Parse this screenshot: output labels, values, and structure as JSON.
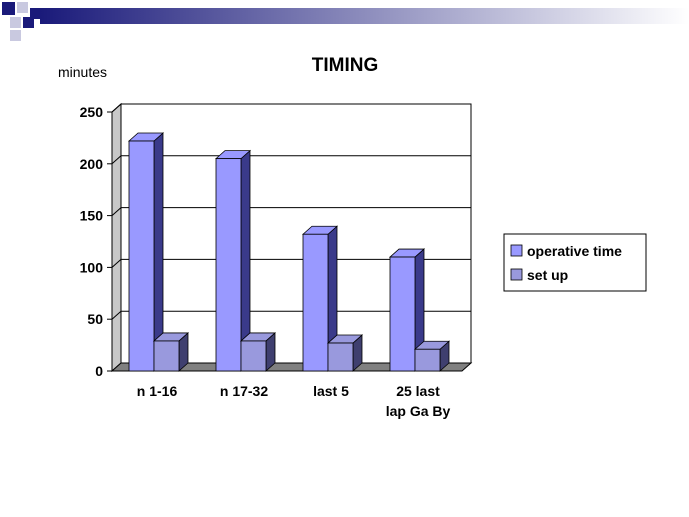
{
  "chart_data": {
    "type": "bar",
    "title": "TIMING",
    "ylabel": "minutes",
    "xlabel": "",
    "categories": [
      [
        "n 1-16"
      ],
      [
        "n 17-32"
      ],
      [
        "last 5"
      ],
      [
        "25 last",
        "lap Ga By"
      ]
    ],
    "series": [
      {
        "name": "operative time",
        "values": [
          222,
          205,
          132,
          110
        ],
        "color": "#9999ff"
      },
      {
        "name": "set up",
        "values": [
          29,
          29,
          27,
          21
        ],
        "color": "#9999dd"
      }
    ],
    "yticks": [
      "0",
      "50",
      "100",
      "150",
      "200",
      "250"
    ],
    "ylim": [
      0,
      250
    ],
    "grid": true,
    "legend_position": "right",
    "style": "3d-column"
  },
  "colors": {
    "accent": "#1a1a7a",
    "bar_side": "#3a3a8a",
    "set_up_side": "#3f3f6f",
    "floor": "#808080"
  }
}
